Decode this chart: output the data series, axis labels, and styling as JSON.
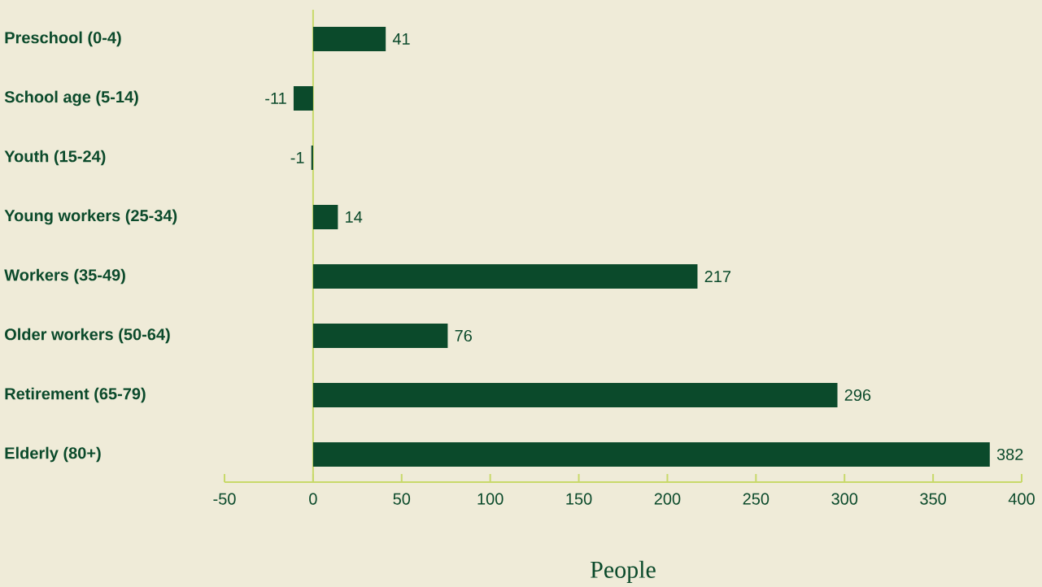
{
  "chart_data": {
    "type": "bar",
    "orientation": "horizontal",
    "xlabel": "People",
    "categories": [
      "Preschool (0-4)",
      "School age (5-14)",
      "Youth (15-24)",
      "Young workers (25-34)",
      "Workers (35-49)",
      "Older workers (50-64)",
      "Retirement (65-79)",
      "Elderly (80+)"
    ],
    "values": [
      41,
      -11,
      -1,
      14,
      217,
      76,
      296,
      382
    ],
    "color": "#0b4a2b",
    "data_labels": true,
    "grid": false,
    "ref_lines": [
      {
        "axis": "x",
        "value": 0,
        "color": "#c8d96a"
      }
    ],
    "xlim": [
      -50,
      400
    ],
    "xticks": [
      -50,
      0,
      50,
      100,
      150,
      200,
      250,
      300,
      350,
      400
    ]
  }
}
